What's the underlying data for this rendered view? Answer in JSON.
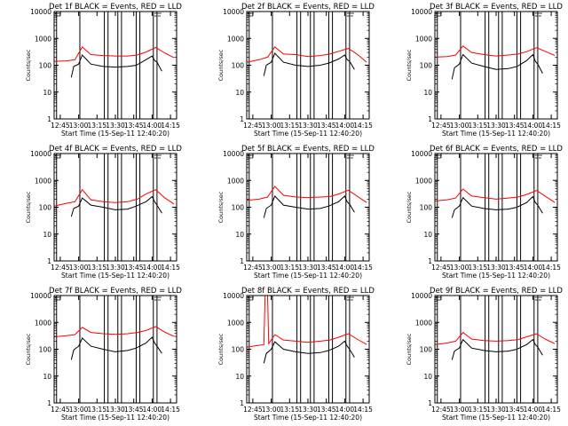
{
  "figure": {
    "background": "#ffffff",
    "event_color": "#000000",
    "lld_color": "#ff0000"
  },
  "chart_data": [
    {
      "type": "line",
      "title": "Det 1f BLACK = Events, RED = LLD",
      "xlabel": "Start Time (15-Sep-11 12:40:20)",
      "ylabel": "Counts/sec",
      "yscale": "log",
      "ylim": [
        1,
        10000
      ],
      "xlim": [
        "12:40",
        "14:20"
      ],
      "x_ticks": [
        "12:45",
        "13:00",
        "13:15",
        "13:30",
        "13:45",
        "14:00",
        "14:15"
      ],
      "y_ticks": [
        "1",
        "10",
        "100",
        "1000",
        "10000"
      ],
      "grid": false,
      "legend": "none",
      "event_markers": [
        "12:40",
        "12:42",
        "13:01",
        "13:21",
        "13:24",
        "13:32",
        "13:35",
        "13:47",
        "13:50",
        "14:01",
        "14:04"
      ],
      "series": [
        {
          "color": "#ff0000",
          "x": [
            "12:40",
            "12:50",
            "12:57",
            "13:03",
            "13:10",
            "13:20",
            "13:30",
            "13:40",
            "13:48",
            "13:55",
            "14:03",
            "14:10",
            "14:18"
          ],
          "values": [
            140,
            145,
            160,
            480,
            250,
            230,
            220,
            220,
            240,
            310,
            460,
            290,
            190
          ]
        },
        {
          "color": "#000000",
          "x": [
            "12:54",
            "12:56",
            "13:00",
            "13:03",
            "13:10",
            "13:20",
            "13:30",
            "13:40",
            "13:47",
            "13:55",
            "14:00",
            "14:02",
            "14:04",
            "14:08"
          ],
          "values": [
            35,
            90,
            110,
            240,
            110,
            90,
            85,
            90,
            100,
            160,
            220,
            150,
            130,
            60
          ]
        }
      ]
    },
    {
      "type": "line",
      "title": "Det 2f BLACK = Events, RED = LLD",
      "xlabel": "Start Time (15-Sep-11 12:40:20)",
      "ylabel": "Counts/sec",
      "yscale": "log",
      "ylim": [
        1,
        10000
      ],
      "xlim": [
        "12:40",
        "14:20"
      ],
      "x_ticks": [
        "12:45",
        "13:00",
        "13:15",
        "13:30",
        "13:45",
        "14:00",
        "14:15"
      ],
      "y_ticks": [
        "1",
        "10",
        "100",
        "1000",
        "10000"
      ],
      "grid": false,
      "legend": "none",
      "event_markers": [
        "12:40",
        "12:42",
        "13:01",
        "13:21",
        "13:24",
        "13:32",
        "13:35",
        "13:47",
        "13:50",
        "14:01",
        "14:04"
      ],
      "series": [
        {
          "color": "#ff0000",
          "x": [
            "12:40",
            "12:50",
            "12:57",
            "13:03",
            "13:10",
            "13:20",
            "13:30",
            "13:40",
            "13:48",
            "13:55",
            "14:03",
            "14:10",
            "14:18"
          ],
          "values": [
            130,
            160,
            200,
            480,
            260,
            250,
            210,
            230,
            260,
            330,
            420,
            260,
            130
          ]
        },
        {
          "color": "#000000",
          "x": [
            "12:54",
            "12:56",
            "13:00",
            "13:03",
            "13:10",
            "13:20",
            "13:30",
            "13:40",
            "13:47",
            "13:55",
            "14:00",
            "14:02",
            "14:04",
            "14:08"
          ],
          "values": [
            40,
            100,
            130,
            280,
            130,
            100,
            90,
            100,
            120,
            170,
            240,
            160,
            140,
            70
          ]
        }
      ]
    },
    {
      "type": "line",
      "title": "Det 3f BLACK = Events, RED = LLD",
      "xlabel": "Start Time (15-Sep-11 12:40:20)",
      "ylabel": "Counts/sec",
      "yscale": "log",
      "ylim": [
        1,
        10000
      ],
      "xlim": [
        "12:40",
        "14:20"
      ],
      "x_ticks": [
        "12:45",
        "13:00",
        "13:15",
        "13:30",
        "13:45",
        "14:00",
        "14:15"
      ],
      "y_ticks": [
        "1",
        "10",
        "100",
        "1000",
        "10000"
      ],
      "grid": false,
      "legend": "none",
      "event_markers": [
        "12:40",
        "12:42",
        "13:01",
        "13:21",
        "13:24",
        "13:32",
        "13:35",
        "13:47",
        "13:50",
        "14:01",
        "14:04"
      ],
      "series": [
        {
          "color": "#ff0000",
          "x": [
            "12:40",
            "12:50",
            "12:57",
            "13:03",
            "13:10",
            "13:20",
            "13:30",
            "13:40",
            "13:48",
            "13:55",
            "14:03",
            "14:10",
            "14:18"
          ],
          "values": [
            200,
            210,
            240,
            520,
            300,
            250,
            220,
            240,
            260,
            320,
            450,
            330,
            230
          ]
        },
        {
          "color": "#000000",
          "x": [
            "12:54",
            "12:56",
            "13:00",
            "13:03",
            "13:10",
            "13:20",
            "13:30",
            "13:40",
            "13:47",
            "13:55",
            "14:00",
            "14:02",
            "14:04",
            "14:08"
          ],
          "values": [
            30,
            80,
            110,
            250,
            120,
            90,
            70,
            75,
            90,
            150,
            250,
            140,
            110,
            50
          ]
        }
      ]
    },
    {
      "type": "line",
      "title": "Det 4f BLACK = Events, RED = LLD",
      "xlabel": "Start Time (15-Sep-11 12:40:20)",
      "ylabel": "Counts/sec",
      "yscale": "log",
      "ylim": [
        1,
        10000
      ],
      "xlim": [
        "12:40",
        "14:20"
      ],
      "x_ticks": [
        "12:45",
        "13:00",
        "13:15",
        "13:30",
        "13:45",
        "14:00",
        "14:15"
      ],
      "y_ticks": [
        "1",
        "10",
        "100",
        "1000",
        "10000"
      ],
      "grid": false,
      "legend": "none",
      "event_markers": [
        "12:40",
        "12:42",
        "13:01",
        "13:21",
        "13:24",
        "13:32",
        "13:35",
        "13:47",
        "13:50",
        "14:01",
        "14:04"
      ],
      "series": [
        {
          "color": "#ff0000",
          "x": [
            "12:40",
            "12:50",
            "12:57",
            "13:03",
            "13:10",
            "13:20",
            "13:30",
            "13:40",
            "13:48",
            "13:55",
            "14:03",
            "14:10",
            "14:18"
          ],
          "values": [
            110,
            140,
            160,
            450,
            190,
            160,
            150,
            160,
            200,
            310,
            450,
            230,
            130
          ]
        },
        {
          "color": "#000000",
          "x": [
            "12:54",
            "12:56",
            "13:00",
            "13:03",
            "13:10",
            "13:20",
            "13:30",
            "13:40",
            "13:47",
            "13:55",
            "14:00",
            "14:02",
            "14:04",
            "14:08"
          ],
          "values": [
            45,
            90,
            110,
            220,
            120,
            100,
            80,
            85,
            110,
            160,
            250,
            160,
            120,
            60
          ]
        }
      ]
    },
    {
      "type": "line",
      "title": "Det 5f BLACK = Events, RED = LLD",
      "xlabel": "Start Time (15-Sep-11 12:40:20)",
      "ylabel": "Counts/sec",
      "yscale": "log",
      "ylim": [
        1,
        10000
      ],
      "xlim": [
        "12:40",
        "14:20"
      ],
      "x_ticks": [
        "12:45",
        "13:00",
        "13:15",
        "13:30",
        "13:45",
        "14:00",
        "14:15"
      ],
      "y_ticks": [
        "1",
        "10",
        "100",
        "1000",
        "10000"
      ],
      "grid": false,
      "legend": "none",
      "event_markers": [
        "12:40",
        "12:42",
        "13:01",
        "13:21",
        "13:24",
        "13:32",
        "13:35",
        "13:47",
        "13:50",
        "14:01",
        "14:04"
      ],
      "series": [
        {
          "color": "#ff0000",
          "x": [
            "12:40",
            "12:50",
            "12:57",
            "13:03",
            "13:10",
            "13:20",
            "13:30",
            "13:40",
            "13:48",
            "13:55",
            "14:03",
            "14:10",
            "14:18"
          ],
          "values": [
            180,
            200,
            240,
            600,
            280,
            240,
            230,
            240,
            250,
            310,
            430,
            260,
            150
          ]
        },
        {
          "color": "#000000",
          "x": [
            "12:54",
            "12:56",
            "13:00",
            "13:03",
            "13:10",
            "13:20",
            "13:30",
            "13:40",
            "13:47",
            "13:55",
            "14:00",
            "14:02",
            "14:04",
            "14:08"
          ],
          "values": [
            40,
            90,
            120,
            260,
            120,
            100,
            85,
            90,
            110,
            160,
            260,
            160,
            130,
            65
          ]
        }
      ]
    },
    {
      "type": "line",
      "title": "Det 6f BLACK = Events, RED = LLD",
      "xlabel": "Start Time (15-Sep-11 12:40:20)",
      "ylabel": "Counts/sec",
      "yscale": "log",
      "ylim": [
        1,
        10000
      ],
      "xlim": [
        "12:40",
        "14:20"
      ],
      "x_ticks": [
        "12:45",
        "13:00",
        "13:15",
        "13:30",
        "13:45",
        "14:00",
        "14:15"
      ],
      "y_ticks": [
        "1",
        "10",
        "100",
        "1000",
        "10000"
      ],
      "grid": false,
      "legend": "none",
      "event_markers": [
        "12:40",
        "12:42",
        "13:01",
        "13:21",
        "13:24",
        "13:32",
        "13:35",
        "13:47",
        "13:50",
        "14:01",
        "14:04"
      ],
      "series": [
        {
          "color": "#ff0000",
          "x": [
            "12:40",
            "12:50",
            "12:57",
            "13:03",
            "13:10",
            "13:20",
            "13:30",
            "13:40",
            "13:48",
            "13:55",
            "14:03",
            "14:10",
            "14:18"
          ],
          "values": [
            170,
            190,
            220,
            480,
            260,
            230,
            200,
            220,
            240,
            300,
            420,
            260,
            150
          ]
        },
        {
          "color": "#000000",
          "x": [
            "12:54",
            "12:56",
            "13:00",
            "13:03",
            "13:10",
            "13:20",
            "13:30",
            "13:40",
            "13:47",
            "13:55",
            "14:00",
            "14:02",
            "14:04",
            "14:08"
          ],
          "values": [
            40,
            80,
            110,
            230,
            110,
            90,
            80,
            85,
            100,
            150,
            250,
            150,
            120,
            60
          ]
        }
      ]
    },
    {
      "type": "line",
      "title": "Det 7f BLACK = Events, RED = LLD",
      "xlabel": "Start Time (15-Sep-11 12:40:20)",
      "ylabel": "Counts/sec",
      "yscale": "log",
      "ylim": [
        1,
        10000
      ],
      "xlim": [
        "12:40",
        "14:20"
      ],
      "x_ticks": [
        "12:45",
        "13:00",
        "13:15",
        "13:30",
        "13:45",
        "14:00",
        "14:15"
      ],
      "y_ticks": [
        "1",
        "10",
        "100",
        "1000",
        "10000"
      ],
      "grid": false,
      "legend": "none",
      "event_markers": [
        "12:40",
        "12:42",
        "13:01",
        "13:21",
        "13:24",
        "13:32",
        "13:35",
        "13:47",
        "13:50",
        "14:01",
        "14:04"
      ],
      "series": [
        {
          "color": "#ff0000",
          "x": [
            "12:40",
            "12:50",
            "12:57",
            "13:03",
            "13:10",
            "13:20",
            "13:30",
            "13:40",
            "13:48",
            "13:55",
            "14:03",
            "14:10",
            "14:18"
          ],
          "values": [
            290,
            320,
            350,
            650,
            420,
            380,
            360,
            380,
            420,
            500,
            700,
            440,
            300
          ]
        },
        {
          "color": "#000000",
          "x": [
            "12:54",
            "12:56",
            "13:00",
            "13:03",
            "13:10",
            "13:20",
            "13:30",
            "13:40",
            "13:47",
            "13:55",
            "14:00",
            "14:02",
            "14:04",
            "14:08"
          ],
          "values": [
            40,
            95,
            130,
            260,
            130,
            100,
            80,
            90,
            110,
            170,
            280,
            170,
            130,
            70
          ]
        }
      ]
    },
    {
      "type": "line",
      "title": "Det 8f BLACK = Events, RED = LLD",
      "xlabel": "Start Time (15-Sep-11 12:40:20)",
      "ylabel": "Counts/sec",
      "yscale": "log",
      "ylim": [
        1,
        10000
      ],
      "xlim": [
        "12:40",
        "14:20"
      ],
      "x_ticks": [
        "12:45",
        "13:00",
        "13:15",
        "13:30",
        "13:45",
        "14:00",
        "14:15"
      ],
      "y_ticks": [
        "1",
        "10",
        "100",
        "1000",
        "10000"
      ],
      "grid": false,
      "legend": "none",
      "event_markers": [
        "12:40",
        "12:42",
        "13:01",
        "13:21",
        "13:24",
        "13:32",
        "13:35",
        "13:47",
        "13:50",
        "14:01",
        "14:04"
      ],
      "series": [
        {
          "color": "#ff0000",
          "x": [
            "12:40",
            "12:50",
            "12:54",
            "12:55",
            "12:57",
            "12:58",
            "13:03",
            "13:10",
            "13:20",
            "13:30",
            "13:40",
            "13:48",
            "13:55",
            "14:03",
            "14:10",
            "14:18"
          ],
          "values": [
            120,
            140,
            150,
            10000,
            10000,
            160,
            350,
            220,
            200,
            180,
            200,
            220,
            280,
            380,
            240,
            150
          ]
        },
        {
          "color": "#000000",
          "x": [
            "12:54",
            "12:56",
            "13:00",
            "13:03",
            "13:10",
            "13:20",
            "13:30",
            "13:40",
            "13:47",
            "13:55",
            "14:00",
            "14:02",
            "14:04",
            "14:08"
          ],
          "values": [
            30,
            70,
            100,
            190,
            100,
            80,
            70,
            75,
            90,
            130,
            200,
            130,
            100,
            50
          ]
        }
      ]
    },
    {
      "type": "line",
      "title": "Det 9f BLACK = Events, RED = LLD",
      "xlabel": "Start Time (15-Sep-11 12:40:20)",
      "ylabel": "Counts/sec",
      "yscale": "log",
      "ylim": [
        1,
        10000
      ],
      "xlim": [
        "12:40",
        "14:20"
      ],
      "x_ticks": [
        "12:45",
        "13:00",
        "13:15",
        "13:30",
        "13:45",
        "14:00",
        "14:15"
      ],
      "y_ticks": [
        "1",
        "10",
        "100",
        "1000",
        "10000"
      ],
      "grid": false,
      "legend": "none",
      "event_markers": [
        "12:40",
        "12:42",
        "13:01",
        "13:21",
        "13:24",
        "13:32",
        "13:35",
        "13:47",
        "13:50",
        "14:01",
        "14:04"
      ],
      "series": [
        {
          "color": "#ff0000",
          "x": [
            "12:40",
            "12:50",
            "12:57",
            "13:03",
            "13:10",
            "13:20",
            "13:30",
            "13:40",
            "13:48",
            "13:55",
            "14:03",
            "14:10",
            "14:18"
          ],
          "values": [
            150,
            170,
            200,
            420,
            240,
            210,
            200,
            210,
            230,
            290,
            380,
            240,
            160
          ]
        },
        {
          "color": "#000000",
          "x": [
            "12:54",
            "12:56",
            "13:00",
            "13:03",
            "13:10",
            "13:20",
            "13:30",
            "13:40",
            "13:47",
            "13:55",
            "14:00",
            "14:02",
            "14:04",
            "14:08"
          ],
          "values": [
            40,
            85,
            110,
            230,
            110,
            90,
            80,
            85,
            100,
            150,
            230,
            150,
            120,
            60
          ]
        }
      ]
    }
  ]
}
